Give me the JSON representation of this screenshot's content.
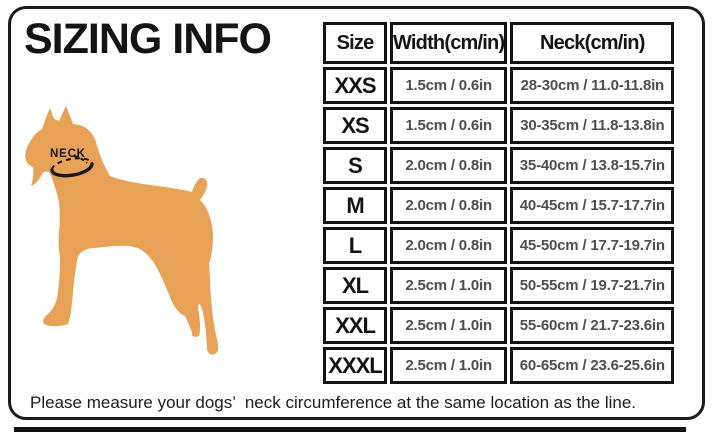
{
  "title": "SIZING INFO",
  "diagram": {
    "neck_label": "NECK"
  },
  "table": {
    "headers": [
      "Size",
      "Width(cm/in)",
      "Neck(cm/in)"
    ],
    "rows": [
      [
        "XXS",
        "1.5cm / 0.6in",
        "28-30cm / 11.0-11.8in"
      ],
      [
        "XS",
        "1.5cm / 0.6in",
        "30-35cm / 11.8-13.8in"
      ],
      [
        "S",
        "2.0cm / 0.8in",
        "35-40cm / 13.8-15.7in"
      ],
      [
        "M",
        "2.0cm / 0.8in",
        "40-45cm / 15.7-17.7in"
      ],
      [
        "L",
        "2.0cm / 0.8in",
        "45-50cm / 17.7-19.7in"
      ],
      [
        "XL",
        "2.5cm / 1.0in",
        "50-55cm / 19.7-21.7in"
      ],
      [
        "XXL",
        "2.5cm / 1.0in",
        "55-60cm / 21.7-23.6in"
      ],
      [
        "XXXL",
        "2.5cm / 1.0in",
        "60-65cm / 23.6-25.6in"
      ]
    ]
  },
  "note": "Please measure your dogs’  neck circumference at the same location as the line.",
  "colors": {
    "dog_fill": "#E7A258",
    "data_text": "#4E4E50",
    "line_black": "#161616"
  }
}
